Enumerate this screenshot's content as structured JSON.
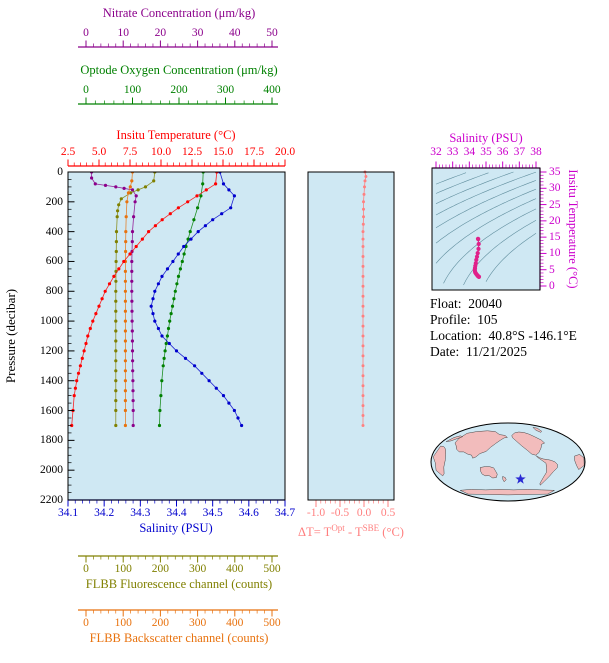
{
  "colors": {
    "nitrate": "#8b008b",
    "oxygen": "#008000",
    "temperature": "#ff0000",
    "salinity": "#0000cd",
    "pressure": "#000000",
    "fluorescence": "#808000",
    "backscatter": "#e8720e",
    "delta": "#ff7f7f",
    "ts": "#cc00cc",
    "ts_track": "#e0218a",
    "contour": "#4d7f8f",
    "plot_bg": "#cfe8f3",
    "land": "#f2bcbc",
    "star": "#2a2ad4"
  },
  "axes": {
    "nitrate": {
      "label": "Nitrate Concentration (μm/kg)",
      "ticks": [
        "0",
        "10",
        "20",
        "30",
        "40",
        "50"
      ],
      "min": 0,
      "max": 50
    },
    "oxygen": {
      "label": "Optode Oxygen Concentration (μm/kg)",
      "ticks": [
        "0",
        "100",
        "200",
        "300",
        "400"
      ],
      "min": 0,
      "max": 400
    },
    "temperature": {
      "label": "Insitu Temperature (°C)",
      "ticks": [
        "2.5",
        "5.0",
        "7.5",
        "10.0",
        "12.5",
        "15.0",
        "17.5",
        "20.0"
      ],
      "min": 2.5,
      "max": 20
    },
    "salinity": {
      "label": "Salinity (PSU)",
      "ticks": [
        "34.1",
        "34.2",
        "34.3",
        "34.4",
        "34.5",
        "34.6",
        "34.7"
      ],
      "min": 34.1,
      "max": 34.7
    },
    "pressure": {
      "label": "Pressure (decibar)",
      "ticks": [
        "0",
        "200",
        "400",
        "600",
        "800",
        "1000",
        "1200",
        "1400",
        "1600",
        "1800",
        "2000",
        "2200"
      ],
      "min": 0,
      "max": 2200
    },
    "fluorescence": {
      "label": "FLBB Fluorescence channel (counts)",
      "ticks": [
        "0",
        "100",
        "200",
        "300",
        "400",
        "500"
      ],
      "min": 0,
      "max": 500
    },
    "backscatter": {
      "label": "FLBB Backscatter channel (counts)",
      "ticks": [
        "0",
        "100",
        "200",
        "300",
        "400",
        "500"
      ],
      "min": 0,
      "max": 500
    }
  },
  "delta_panel": {
    "label_pre": "ΔT= T",
    "label_sup1": "Opt",
    "label_mid": " - T",
    "label_sup2": "SBE",
    "label_post": " (°C)"
  },
  "ts_panel": {
    "top_label": "Salinity (PSU)",
    "right_label": "Insitu Temperature (°C)"
  },
  "info": {
    "lines": [
      "Float:  20040",
      "Profile:  105",
      "Location:  40.8°S -146.1°E",
      "Date:  11/21/2025"
    ]
  },
  "map": {
    "star_lon": -146.1,
    "star_lat": -40.8
  },
  "chart_data": [
    {
      "id": "profile-plot",
      "type": "line",
      "title": "Vertical profiles vs pressure",
      "y_axis": {
        "label": "Pressure (decibar)",
        "range": [
          0,
          2200
        ]
      },
      "series": [
        {
          "name": "Optode Oxygen Concentration (μm/kg)",
          "axis": "oxygen",
          "color": "#008000",
          "x_range": [
            0,
            400
          ],
          "points": [
            [
              0,
              252
            ],
            [
              80,
              251
            ],
            [
              160,
              247
            ],
            [
              240,
              240
            ],
            [
              320,
              232
            ],
            [
              400,
              224
            ],
            [
              500,
              215
            ],
            [
              600,
              207
            ],
            [
              700,
              199
            ],
            [
              800,
              192
            ],
            [
              900,
              186
            ],
            [
              1000,
              180
            ],
            [
              1100,
              175
            ],
            [
              1200,
              170
            ],
            [
              1300,
              166
            ],
            [
              1400,
              163
            ],
            [
              1500,
              161
            ],
            [
              1600,
              159
            ],
            [
              1700,
              158
            ]
          ]
        },
        {
          "name": "Nitrate Concentration (μm/kg)",
          "axis": "nitrate",
          "color": "#8b008b",
          "x_range": [
            0,
            50
          ],
          "points": [
            [
              0,
              1.5
            ],
            [
              40,
              1.5
            ],
            [
              80,
              2.5
            ],
            [
              100,
              8
            ],
            [
              120,
              12.5
            ],
            [
              160,
              13.5
            ],
            [
              200,
              13.2
            ],
            [
              300,
              12.8
            ],
            [
              400,
              12.5
            ],
            [
              600,
              12.3
            ],
            [
              800,
              12.3
            ],
            [
              1000,
              12.4
            ],
            [
              1200,
              12.5
            ],
            [
              1400,
              12.6
            ],
            [
              1600,
              12.7
            ],
            [
              1700,
              12.7
            ]
          ]
        },
        {
          "name": "FLBB Fluorescence channel (counts)",
          "axis": "fluorescence",
          "color": "#808000",
          "x_range": [
            0,
            500
          ],
          "points": [
            [
              0,
              185
            ],
            [
              60,
              182
            ],
            [
              100,
              160
            ],
            [
              140,
              120
            ],
            [
              180,
              95
            ],
            [
              220,
              88
            ],
            [
              260,
              85
            ],
            [
              300,
              84
            ],
            [
              400,
              82
            ],
            [
              600,
              81
            ],
            [
              800,
              80
            ],
            [
              1000,
              80
            ],
            [
              1200,
              80
            ],
            [
              1400,
              80
            ],
            [
              1600,
              80
            ],
            [
              1700,
              80
            ]
          ]
        },
        {
          "name": "FLBB Backscatter channel (counts)",
          "axis": "backscatter",
          "color": "#e8720e",
          "x_range": [
            0,
            500
          ],
          "points": [
            [
              0,
              125
            ],
            [
              60,
              123
            ],
            [
              100,
              119
            ],
            [
              140,
              114
            ],
            [
              200,
              110
            ],
            [
              300,
              108
            ],
            [
              400,
              107
            ],
            [
              600,
              106
            ],
            [
              800,
              106
            ],
            [
              1000,
              106
            ],
            [
              1200,
              106
            ],
            [
              1400,
              106
            ],
            [
              1600,
              106
            ],
            [
              1700,
              106
            ]
          ]
        },
        {
          "name": "Insitu Temperature (°C)",
          "axis": "temperature",
          "color": "#ff0000",
          "x_range": [
            2.5,
            20
          ],
          "points": [
            [
              0,
              14.5
            ],
            [
              80,
              14.4
            ],
            [
              160,
              12.9
            ],
            [
              240,
              11.4
            ],
            [
              320,
              10.1
            ],
            [
              400,
              9.0
            ],
            [
              500,
              8.0
            ],
            [
              600,
              7.0
            ],
            [
              700,
              6.2
            ],
            [
              800,
              5.5
            ],
            [
              900,
              5.0
            ],
            [
              1000,
              4.5
            ],
            [
              1100,
              4.1
            ],
            [
              1200,
              3.8
            ],
            [
              1300,
              3.5
            ],
            [
              1400,
              3.2
            ],
            [
              1500,
              3.0
            ],
            [
              1600,
              2.9
            ],
            [
              1700,
              2.8
            ]
          ]
        },
        {
          "name": "Salinity (PSU)",
          "axis": "salinity",
          "color": "#0000cd",
          "x_range": [
            34.1,
            34.7
          ],
          "points": [
            [
              0,
              34.52
            ],
            [
              80,
              34.53
            ],
            [
              160,
              34.56
            ],
            [
              240,
              34.55
            ],
            [
              320,
              34.5
            ],
            [
              400,
              34.46
            ],
            [
              500,
              34.42
            ],
            [
              600,
              34.39
            ],
            [
              700,
              34.36
            ],
            [
              800,
              34.34
            ],
            [
              900,
              34.33
            ],
            [
              1000,
              34.34
            ],
            [
              1100,
              34.36
            ],
            [
              1200,
              34.4
            ],
            [
              1300,
              34.45
            ],
            [
              1400,
              34.49
            ],
            [
              1500,
              34.53
            ],
            [
              1600,
              34.56
            ],
            [
              1700,
              34.58
            ]
          ]
        }
      ]
    },
    {
      "id": "delta-t-panel",
      "type": "line",
      "xlabel": "ΔT= T^Opt - T^SBE (°C)",
      "x_range": [
        -1.0,
        0.5
      ],
      "x_ticks": [
        "-1.0",
        "-0.5",
        "0.0",
        "0.5"
      ],
      "color": "#ff8080",
      "points": [
        [
          0,
          0.02
        ],
        [
          30,
          0.04
        ],
        [
          60,
          0.02
        ],
        [
          100,
          0.01
        ],
        [
          150,
          0.0
        ],
        [
          200,
          -0.01
        ],
        [
          300,
          -0.01
        ],
        [
          400,
          -0.02
        ],
        [
          500,
          -0.02
        ],
        [
          700,
          -0.02
        ],
        [
          900,
          -0.02
        ],
        [
          1100,
          -0.02
        ],
        [
          1300,
          -0.02
        ],
        [
          1500,
          -0.02
        ],
        [
          1700,
          -0.02
        ]
      ]
    },
    {
      "id": "ts-diagram",
      "type": "scatter",
      "xlabel": "Salinity (PSU)",
      "ylabel": "Insitu Temperature (°C)",
      "x_range": [
        32,
        38
      ],
      "y_range": [
        0,
        35
      ],
      "x_ticks": [
        "32",
        "33",
        "34",
        "35",
        "36",
        "37",
        "38"
      ],
      "y_ticks": [
        "0",
        "5",
        "10",
        "15",
        "20",
        "25",
        "30",
        "35"
      ],
      "track_color": "#e0218a",
      "density_contour_levels": [
        19,
        20,
        21,
        22,
        23,
        24,
        25,
        26,
        27,
        28
      ],
      "points": [
        [
          34.52,
          14.5
        ],
        [
          34.53,
          14.4
        ],
        [
          34.56,
          12.9
        ],
        [
          34.55,
          11.4
        ],
        [
          34.5,
          10.1
        ],
        [
          34.46,
          9.0
        ],
        [
          34.42,
          8.0
        ],
        [
          34.39,
          7.0
        ],
        [
          34.36,
          6.2
        ],
        [
          34.34,
          5.5
        ],
        [
          34.33,
          5.0
        ],
        [
          34.34,
          4.5
        ],
        [
          34.36,
          4.1
        ],
        [
          34.4,
          3.8
        ],
        [
          34.45,
          3.5
        ],
        [
          34.49,
          3.2
        ],
        [
          34.53,
          3.0
        ],
        [
          34.56,
          2.9
        ],
        [
          34.58,
          2.8
        ]
      ]
    }
  ]
}
